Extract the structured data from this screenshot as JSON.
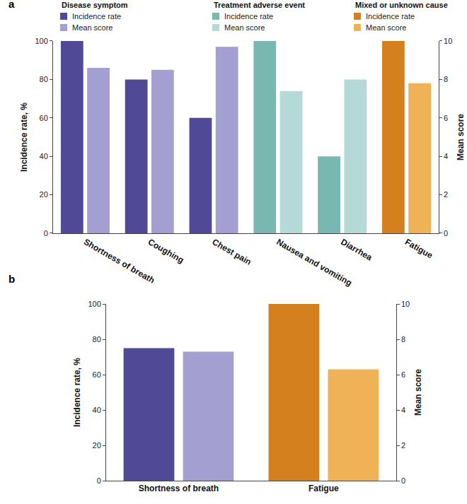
{
  "chart_data": [
    {
      "type": "bar",
      "title": "a",
      "categories": [
        "Shortness of breath",
        "Coughing",
        "Chest pain",
        "Nausea and vomiting",
        "Diarrhea",
        "Fatigue"
      ],
      "ylabel": "Incidence rate, %",
      "y2label": "Mean score",
      "ylim": [
        0,
        100
      ],
      "yticks": [
        0,
        20,
        40,
        60,
        80,
        100
      ],
      "y2lim": [
        0,
        10
      ],
      "y2ticks": [
        0,
        2,
        4,
        6,
        8,
        10
      ],
      "series": [
        {
          "name": "Incidence rate",
          "group": "Disease symptom",
          "color": "#4f4996",
          "values": [
            100,
            80,
            60,
            null,
            null,
            null
          ]
        },
        {
          "name": "Mean score",
          "group": "Disease symptom",
          "color": "#a39fd1",
          "axis": "y2",
          "values": [
            8.6,
            8.5,
            9.7,
            null,
            null,
            null
          ]
        },
        {
          "name": "Incidence rate",
          "group": "Treatment adverse event",
          "color": "#78b8b1",
          "values": [
            null,
            null,
            null,
            100,
            40,
            null
          ]
        },
        {
          "name": "Mean score",
          "group": "Treatment adverse event",
          "color": "#b4d9d6",
          "axis": "y2",
          "values": [
            null,
            null,
            null,
            7.4,
            8.0,
            null
          ]
        },
        {
          "name": "Incidence rate",
          "group": "Mixed or unknown cause",
          "color": "#d5801e",
          "values": [
            null,
            null,
            null,
            null,
            null,
            100
          ]
        },
        {
          "name": "Mean score",
          "group": "Mixed or unknown cause",
          "color": "#efb256",
          "axis": "y2",
          "values": [
            null,
            null,
            null,
            null,
            null,
            7.8
          ]
        }
      ]
    },
    {
      "type": "bar",
      "title": "b",
      "categories": [
        "Shortness of breath",
        "Fatigue"
      ],
      "ylabel": "Incidence rate, %",
      "y2label": "Mean score",
      "ylim": [
        0,
        100
      ],
      "yticks": [
        0,
        20,
        40,
        60,
        80,
        100
      ],
      "y2lim": [
        0,
        10
      ],
      "y2ticks": [
        0,
        2,
        4,
        6,
        8,
        10
      ],
      "series": [
        {
          "color": "#4f4996",
          "values": [
            75,
            null
          ]
        },
        {
          "color": "#a39fd1",
          "axis": "y2",
          "values": [
            7.3,
            null
          ]
        },
        {
          "color": "#d5801e",
          "values": [
            null,
            100
          ]
        },
        {
          "color": "#efb256",
          "axis": "y2",
          "values": [
            null,
            6.3
          ]
        }
      ]
    }
  ]
}
